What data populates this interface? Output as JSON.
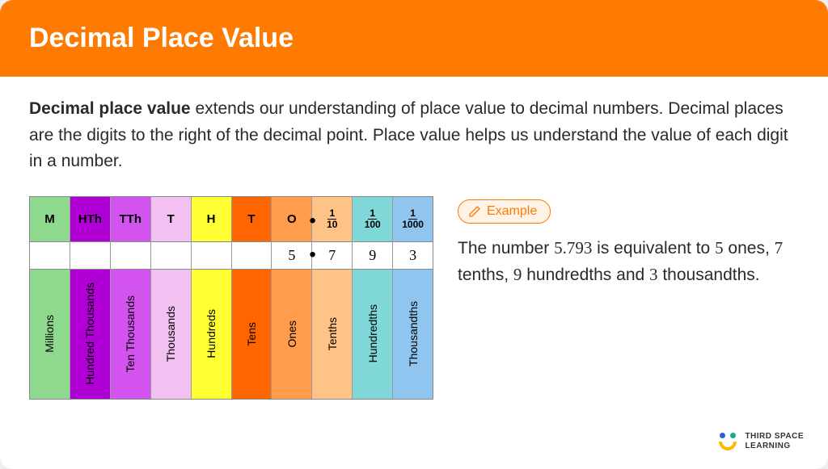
{
  "header": {
    "title": "Decimal Place Value"
  },
  "intro": {
    "bold": "Decimal place value",
    "rest": " extends our understanding of place value to decimal numbers. Decimal places are the digits to the right of the decimal point. Place value helps us understand the value of each digit in a number."
  },
  "table": {
    "columns": [
      {
        "abbr": "M",
        "value": "",
        "label": "Millions",
        "bg": "#8fd98f",
        "frac": null,
        "dot": false
      },
      {
        "abbr": "HTh",
        "value": "",
        "label": "Hundred Thousands",
        "bg": "#b100d6",
        "frac": null,
        "dot": false
      },
      {
        "abbr": "TTh",
        "value": "",
        "label": "Ten Thousands",
        "bg": "#d353ef",
        "frac": null,
        "dot": false
      },
      {
        "abbr": "T",
        "value": "",
        "label": "Thousands",
        "bg": "#f2c1f2",
        "frac": null,
        "dot": false
      },
      {
        "abbr": "H",
        "value": "",
        "label": "Hundreds",
        "bg": "#ffff33",
        "frac": null,
        "dot": false
      },
      {
        "abbr": "T",
        "value": "",
        "label": "Tens",
        "bg": "#ff6600",
        "frac": null,
        "dot": false
      },
      {
        "abbr": "O",
        "value": "5",
        "label": "Ones",
        "bg": "#ff9d4d",
        "frac": null,
        "dot": false
      },
      {
        "abbr": "",
        "value": "7",
        "label": "Tenths",
        "bg": "#ffc387",
        "frac": {
          "n": "1",
          "d": "10"
        },
        "dot": true
      },
      {
        "abbr": "",
        "value": "9",
        "label": "Hundredths",
        "bg": "#7fd7d7",
        "frac": {
          "n": "1",
          "d": "100"
        },
        "dot": false
      },
      {
        "abbr": "",
        "value": "3",
        "label": "Thousandths",
        "bg": "#8fc5ef",
        "frac": {
          "n": "1",
          "d": "1000"
        },
        "dot": false
      }
    ]
  },
  "example": {
    "badge": "Example",
    "text_parts": {
      "p1": "The number ",
      "n1": "5.793",
      "p2": " is equivalent to ",
      "n2": "5",
      "p3": " ones, ",
      "n3": "7",
      "p4": " tenths, ",
      "n4": "9",
      "p5": " hundredths and ",
      "n5": "3",
      "p6": " thousandths."
    }
  },
  "logo": {
    "line1": "THIRD SPACE",
    "line2": "LEARNING"
  },
  "colors": {
    "accent": "#ff7a00"
  }
}
